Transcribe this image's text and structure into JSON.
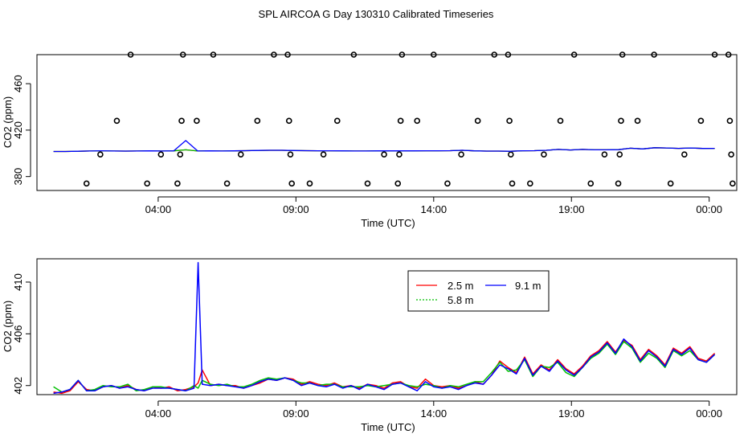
{
  "title": "SPL AIRCOA G  Day 130310  Calibrated Timeseries",
  "chart_data": [
    {
      "type": "scatter",
      "xlabel": "Time (UTC)",
      "ylabel": "CO2 (ppm)",
      "xticks": [
        "04:00",
        "09:00",
        "14:00",
        "19:00",
        "00:00"
      ],
      "xticks_hours": [
        4,
        9,
        14,
        19,
        24
      ],
      "yticks": [
        380,
        420,
        460
      ],
      "xlim": [
        -0.4,
        25.0
      ],
      "ylim": [
        368,
        485
      ],
      "grid": false,
      "points": [
        {
          "x": 1.4,
          "y": 374
        },
        {
          "x": 1.9,
          "y": 399
        },
        {
          "x": 2.5,
          "y": 428
        },
        {
          "x": 3.0,
          "y": 485
        },
        {
          "x": 3.6,
          "y": 374
        },
        {
          "x": 4.1,
          "y": 399
        },
        {
          "x": 4.7,
          "y": 374
        },
        {
          "x": 4.8,
          "y": 399
        },
        {
          "x": 4.85,
          "y": 428
        },
        {
          "x": 4.9,
          "y": 485
        },
        {
          "x": 5.4,
          "y": 428
        },
        {
          "x": 6.0,
          "y": 485
        },
        {
          "x": 6.5,
          "y": 374
        },
        {
          "x": 7.0,
          "y": 399
        },
        {
          "x": 7.6,
          "y": 428
        },
        {
          "x": 8.2,
          "y": 485
        },
        {
          "x": 8.7,
          "y": 485
        },
        {
          "x": 8.75,
          "y": 428
        },
        {
          "x": 8.8,
          "y": 399
        },
        {
          "x": 8.85,
          "y": 374
        },
        {
          "x": 9.5,
          "y": 374
        },
        {
          "x": 10.0,
          "y": 399
        },
        {
          "x": 10.5,
          "y": 428
        },
        {
          "x": 11.1,
          "y": 485
        },
        {
          "x": 11.6,
          "y": 374
        },
        {
          "x": 12.2,
          "y": 399
        },
        {
          "x": 12.7,
          "y": 374
        },
        {
          "x": 12.75,
          "y": 399
        },
        {
          "x": 12.8,
          "y": 428
        },
        {
          "x": 12.85,
          "y": 485
        },
        {
          "x": 13.4,
          "y": 428
        },
        {
          "x": 14.0,
          "y": 485
        },
        {
          "x": 14.5,
          "y": 374
        },
        {
          "x": 15.0,
          "y": 399
        },
        {
          "x": 15.6,
          "y": 428
        },
        {
          "x": 16.2,
          "y": 485
        },
        {
          "x": 16.7,
          "y": 485
        },
        {
          "x": 16.75,
          "y": 428
        },
        {
          "x": 16.8,
          "y": 399
        },
        {
          "x": 16.85,
          "y": 374
        },
        {
          "x": 17.5,
          "y": 374
        },
        {
          "x": 18.0,
          "y": 399
        },
        {
          "x": 18.6,
          "y": 428
        },
        {
          "x": 19.1,
          "y": 485
        },
        {
          "x": 19.7,
          "y": 374
        },
        {
          "x": 20.2,
          "y": 399
        },
        {
          "x": 20.7,
          "y": 374
        },
        {
          "x": 20.75,
          "y": 399
        },
        {
          "x": 20.8,
          "y": 428
        },
        {
          "x": 20.85,
          "y": 485
        },
        {
          "x": 21.4,
          "y": 428
        },
        {
          "x": 22.0,
          "y": 485
        },
        {
          "x": 22.6,
          "y": 374
        },
        {
          "x": 23.1,
          "y": 399
        },
        {
          "x": 23.7,
          "y": 428
        },
        {
          "x": 24.2,
          "y": 485
        },
        {
          "x": 24.7,
          "y": 485
        },
        {
          "x": 24.75,
          "y": 428
        },
        {
          "x": 24.8,
          "y": 399
        },
        {
          "x": 24.85,
          "y": 374
        }
      ],
      "series": [
        {
          "color": "#ff0000",
          "values": [
            401.6,
            401.6,
            401.8,
            402.0,
            402.2,
            402.0,
            401.9,
            402.0,
            402.1,
            402.0,
            402.1,
            403.0,
            402.0,
            402.1,
            402.0,
            402.1,
            402.3,
            402.5,
            402.6,
            402.6,
            402.4,
            402.3,
            402.2,
            402.2,
            402.1,
            402.0,
            402.0,
            402.1,
            402.1,
            402.1,
            402.1,
            402.2,
            402.2,
            402.3,
            402.6,
            402.1,
            401.9,
            401.9,
            401.8,
            402.2,
            402.3,
            402.6,
            403.4,
            402.9,
            403.4,
            403.0,
            403.0,
            403.2,
            404.4,
            403.8,
            404.8,
            404.6,
            404.3,
            404.6,
            404.2,
            404.3
          ]
        },
        {
          "color": "#00c000",
          "values": [
            401.6,
            401.6,
            401.8,
            402.0,
            402.2,
            402.0,
            401.9,
            402.0,
            402.1,
            402.0,
            402.1,
            403.0,
            402.0,
            402.1,
            402.0,
            402.1,
            402.3,
            402.5,
            402.6,
            402.6,
            402.4,
            402.3,
            402.2,
            402.2,
            402.1,
            402.0,
            402.0,
            402.1,
            402.1,
            402.1,
            402.1,
            402.2,
            402.2,
            402.3,
            402.6,
            402.1,
            401.9,
            401.9,
            401.8,
            402.2,
            402.3,
            402.6,
            403.4,
            402.9,
            403.4,
            403.0,
            403.0,
            403.2,
            404.4,
            403.8,
            404.8,
            404.6,
            404.3,
            404.6,
            404.2,
            404.3
          ]
        },
        {
          "color": "#0000ff",
          "values": [
            401.6,
            401.6,
            401.8,
            402.0,
            402.2,
            402.0,
            401.9,
            402.0,
            402.1,
            402.0,
            402.1,
            411.0,
            402.0,
            402.1,
            402.0,
            402.1,
            402.3,
            402.5,
            402.6,
            402.6,
            402.4,
            402.3,
            402.2,
            402.2,
            402.1,
            402.0,
            402.0,
            402.1,
            402.1,
            402.1,
            402.1,
            402.2,
            402.2,
            402.3,
            402.6,
            402.1,
            401.9,
            401.9,
            401.8,
            402.2,
            402.3,
            402.6,
            403.4,
            402.9,
            403.4,
            403.0,
            403.0,
            403.2,
            404.4,
            403.8,
            404.8,
            404.6,
            404.3,
            404.6,
            404.2,
            404.3
          ]
        }
      ]
    },
    {
      "type": "line",
      "xlabel": "Time (UTC)",
      "ylabel": "CO2 (ppm)",
      "xticks": [
        "04:00",
        "09:00",
        "14:00",
        "19:00",
        "00:00"
      ],
      "xticks_hours": [
        4,
        9,
        14,
        19,
        24
      ],
      "yticks": [
        402,
        406,
        410
      ],
      "xlim": [
        -0.4,
        25.0
      ],
      "ylim": [
        401.3,
        411.8
      ],
      "grid": false,
      "legend": {
        "placement": "top-right",
        "entries": [
          {
            "label": "2.5 m",
            "color": "#ff0000"
          },
          {
            "label": "5.8 m",
            "color": "#00c000"
          },
          {
            "label": "9.1 m",
            "color": "#0000ff"
          }
        ]
      },
      "series": [
        {
          "name": "2.5 m",
          "color": "#ff0000",
          "x": [
            0.2,
            0.5,
            0.8,
            1.1,
            1.4,
            1.7,
            2.0,
            2.3,
            2.6,
            2.9,
            3.2,
            3.5,
            3.8,
            4.1,
            4.4,
            4.7,
            5.0,
            5.3,
            5.45,
            5.6,
            5.9,
            6.2,
            6.5,
            6.8,
            7.1,
            7.4,
            7.7,
            8.0,
            8.3,
            8.6,
            8.9,
            9.2,
            9.5,
            9.8,
            10.1,
            10.4,
            10.7,
            11.0,
            11.3,
            11.6,
            11.9,
            12.2,
            12.5,
            12.8,
            13.1,
            13.4,
            13.7,
            14.0,
            14.3,
            14.6,
            14.9,
            15.2,
            15.5,
            15.8,
            16.1,
            16.4,
            16.7,
            17.0,
            17.3,
            17.6,
            17.9,
            18.2,
            18.5,
            18.8,
            19.1,
            19.4,
            19.7,
            20.0,
            20.3,
            20.6,
            20.9,
            21.2,
            21.5,
            21.8,
            22.1,
            22.4,
            22.7,
            23.0,
            23.3,
            23.6,
            23.9,
            24.2
          ],
          "values": [
            401.5,
            401.4,
            401.6,
            402.3,
            401.7,
            401.6,
            401.9,
            402.0,
            401.8,
            402.0,
            401.7,
            401.6,
            401.9,
            401.8,
            401.9,
            401.6,
            401.7,
            401.9,
            402.2,
            403.2,
            402.0,
            402.1,
            402.0,
            402.0,
            401.8,
            402.0,
            402.2,
            402.5,
            402.4,
            402.6,
            402.5,
            402.1,
            402.3,
            402.1,
            402.0,
            402.2,
            401.9,
            402.0,
            401.8,
            402.1,
            402.0,
            401.8,
            402.2,
            402.3,
            401.9,
            401.8,
            402.5,
            402.0,
            401.9,
            402.0,
            401.8,
            402.0,
            402.3,
            402.1,
            402.8,
            403.9,
            403.4,
            403.0,
            404.2,
            402.9,
            403.6,
            403.2,
            404.0,
            403.3,
            402.9,
            403.5,
            404.3,
            404.7,
            405.4,
            404.6,
            405.5,
            405.1,
            404.0,
            404.8,
            404.3,
            403.6,
            404.9,
            404.5,
            405.0,
            404.1,
            403.9,
            404.5
          ]
        },
        {
          "name": "5.8 m",
          "color": "#00c000",
          "x": [
            0.2,
            0.5,
            0.8,
            1.1,
            1.4,
            1.7,
            2.0,
            2.3,
            2.6,
            2.9,
            3.2,
            3.5,
            3.8,
            4.1,
            4.4,
            4.7,
            5.0,
            5.3,
            5.45,
            5.6,
            5.9,
            6.2,
            6.5,
            6.8,
            7.1,
            7.4,
            7.7,
            8.0,
            8.3,
            8.6,
            8.9,
            9.2,
            9.5,
            9.8,
            10.1,
            10.4,
            10.7,
            11.0,
            11.3,
            11.6,
            11.9,
            12.2,
            12.5,
            12.8,
            13.1,
            13.4,
            13.7,
            14.0,
            14.3,
            14.6,
            14.9,
            15.2,
            15.5,
            15.8,
            16.1,
            16.4,
            16.7,
            17.0,
            17.3,
            17.6,
            17.9,
            18.2,
            18.5,
            18.8,
            19.1,
            19.4,
            19.7,
            20.0,
            20.3,
            20.6,
            20.9,
            21.2,
            21.5,
            21.8,
            22.1,
            22.4,
            22.7,
            23.0,
            23.3,
            23.6,
            23.9,
            24.2
          ],
          "values": [
            401.9,
            401.5,
            401.7,
            402.4,
            401.6,
            401.7,
            402.0,
            401.9,
            401.9,
            402.1,
            401.6,
            401.7,
            401.9,
            401.9,
            401.8,
            401.7,
            401.6,
            402.0,
            401.8,
            402.4,
            402.1,
            402.0,
            402.1,
            401.9,
            401.9,
            402.1,
            402.4,
            402.6,
            402.5,
            402.6,
            402.4,
            402.2,
            402.2,
            402.0,
            402.1,
            402.1,
            401.9,
            401.9,
            401.9,
            402.0,
            401.9,
            402.0,
            402.1,
            402.2,
            402.0,
            401.9,
            402.1,
            402.0,
            401.8,
            402.0,
            401.9,
            402.1,
            402.3,
            402.3,
            403.0,
            403.8,
            403.1,
            403.2,
            404.0,
            402.7,
            403.5,
            403.4,
            403.8,
            403.0,
            402.7,
            403.4,
            404.1,
            404.5,
            405.2,
            404.4,
            405.4,
            404.9,
            403.8,
            404.5,
            404.1,
            403.4,
            404.7,
            404.3,
            404.7,
            404.0,
            403.8,
            404.4
          ]
        },
        {
          "name": "9.1 m",
          "color": "#0000ff",
          "x": [
            0.2,
            0.5,
            0.8,
            1.1,
            1.4,
            1.7,
            2.0,
            2.3,
            2.6,
            2.9,
            3.2,
            3.5,
            3.8,
            4.1,
            4.4,
            4.7,
            5.0,
            5.3,
            5.45,
            5.6,
            5.9,
            6.2,
            6.5,
            6.8,
            7.1,
            7.4,
            7.7,
            8.0,
            8.3,
            8.6,
            8.9,
            9.2,
            9.5,
            9.8,
            10.1,
            10.4,
            10.7,
            11.0,
            11.3,
            11.6,
            11.9,
            12.2,
            12.5,
            12.8,
            13.1,
            13.4,
            13.7,
            14.0,
            14.3,
            14.6,
            14.9,
            15.2,
            15.5,
            15.8,
            16.1,
            16.4,
            16.7,
            17.0,
            17.3,
            17.6,
            17.9,
            18.2,
            18.5,
            18.8,
            19.1,
            19.4,
            19.7,
            20.0,
            20.3,
            20.6,
            20.9,
            21.2,
            21.5,
            21.8,
            22.1,
            22.4,
            22.7,
            23.0,
            23.3,
            23.6,
            23.9,
            24.2
          ],
          "values": [
            401.4,
            401.5,
            401.7,
            402.4,
            401.6,
            401.6,
            401.9,
            402.0,
            401.8,
            401.9,
            401.7,
            401.6,
            401.8,
            401.8,
            401.8,
            401.7,
            401.6,
            401.8,
            411.5,
            402.1,
            402.0,
            402.1,
            402.0,
            401.9,
            401.8,
            402.0,
            402.3,
            402.5,
            402.4,
            402.6,
            402.4,
            402.0,
            402.2,
            402.0,
            401.9,
            402.1,
            401.8,
            402.0,
            401.7,
            402.1,
            401.9,
            401.7,
            402.1,
            402.2,
            401.9,
            401.6,
            402.3,
            401.9,
            401.8,
            401.9,
            401.7,
            402.0,
            402.2,
            402.1,
            402.8,
            403.6,
            403.3,
            402.9,
            404.1,
            402.8,
            403.5,
            403.1,
            403.9,
            403.2,
            402.8,
            403.4,
            404.2,
            404.6,
            405.3,
            404.5,
            405.6,
            405.0,
            403.9,
            404.7,
            404.2,
            403.5,
            404.8,
            404.4,
            404.9,
            404.0,
            403.8,
            404.4
          ]
        }
      ]
    }
  ]
}
